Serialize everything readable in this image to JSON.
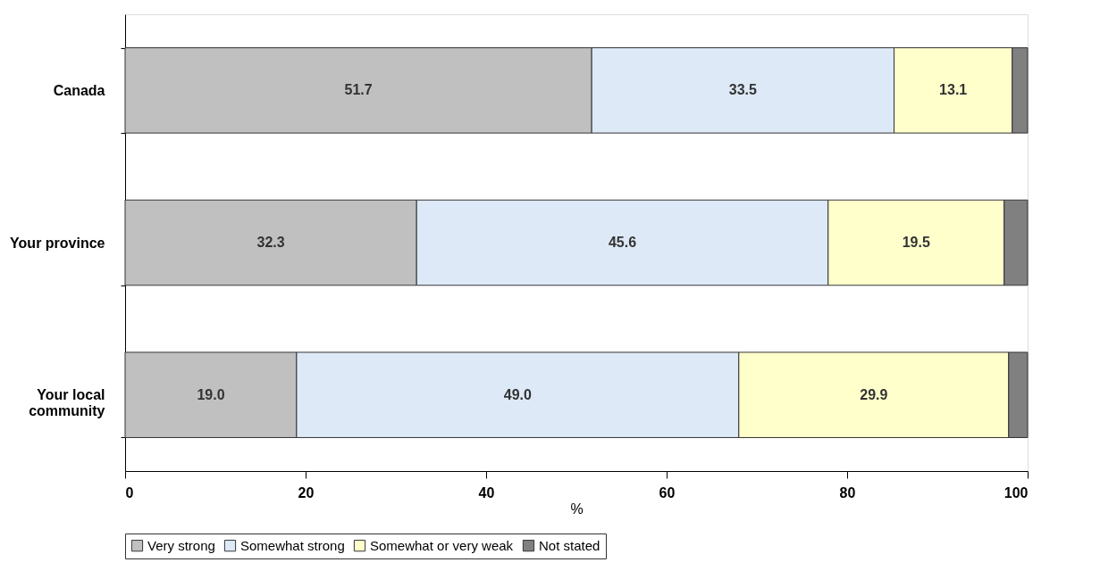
{
  "chart_data": {
    "type": "bar",
    "orientation": "horizontal",
    "stacked": true,
    "categories": [
      "Canada",
      "Your province",
      "Your local community"
    ],
    "xlabel": "%",
    "xlim": [
      0,
      100
    ],
    "xticks": [
      0,
      20,
      40,
      60,
      80,
      100
    ],
    "grid": false,
    "legend": "bottom",
    "series": [
      {
        "name": "Very strong",
        "color": "#c0c0c0",
        "values": [
          51.7,
          32.3,
          19.0
        ],
        "value_labels": [
          "51.7",
          "32.3",
          "19.0"
        ]
      },
      {
        "name": "Somewhat strong",
        "color": "#dde9f7",
        "values": [
          33.5,
          45.6,
          49.0
        ],
        "value_labels": [
          "33.5",
          "45.6",
          "49.0"
        ]
      },
      {
        "name": "Somewhat or very weak",
        "color": "#ffffcc",
        "values": [
          13.1,
          19.5,
          29.9
        ],
        "value_labels": [
          "13.1",
          "19.5",
          "29.9"
        ]
      },
      {
        "name": "Not stated",
        "color": "#808080",
        "values": [
          1.7,
          2.6,
          2.1
        ],
        "value_labels": [
          null,
          null,
          null
        ]
      }
    ]
  }
}
